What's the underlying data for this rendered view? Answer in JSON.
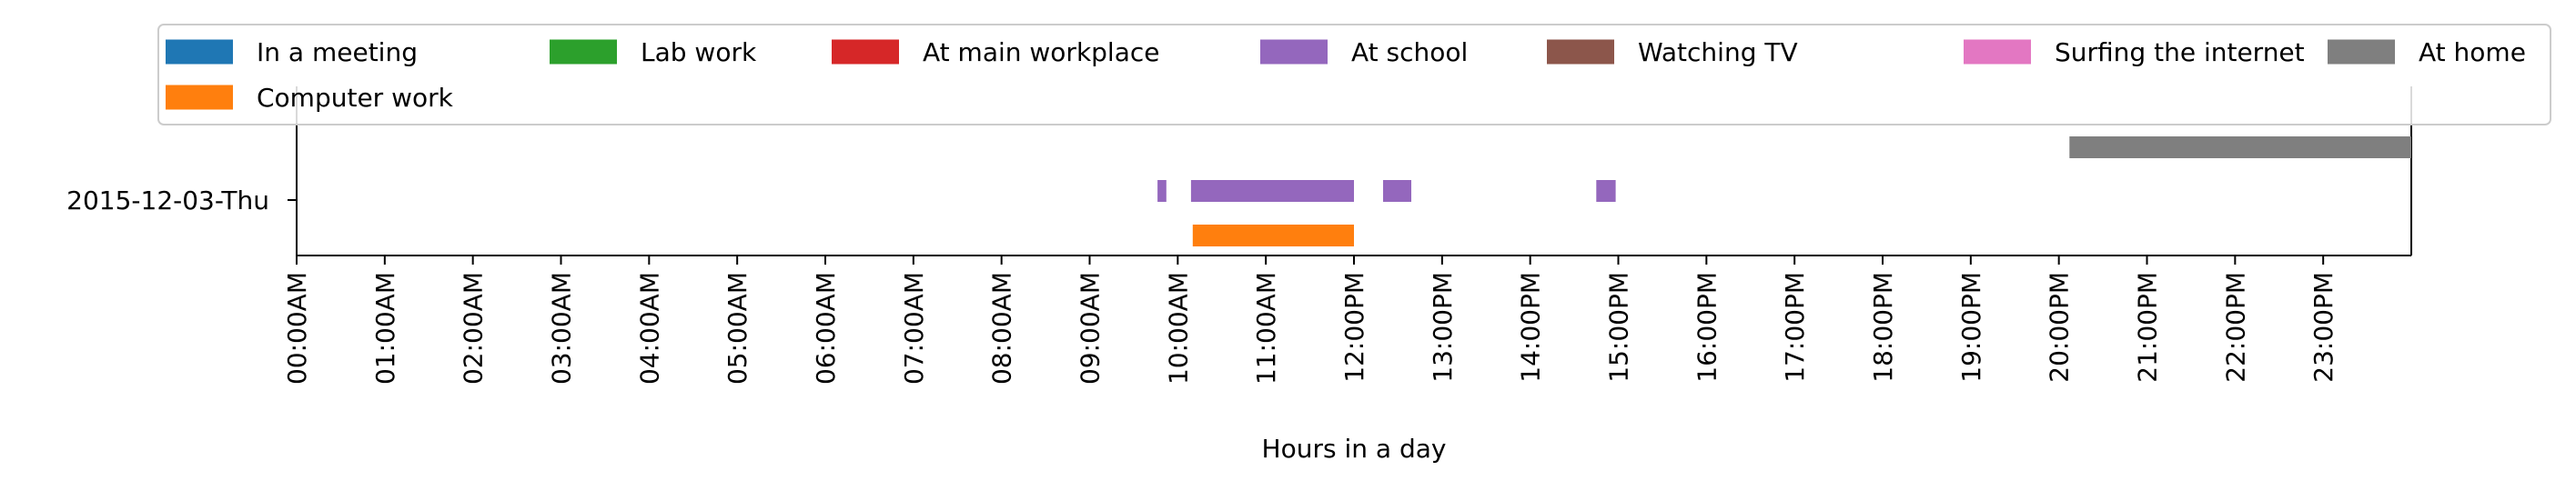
{
  "chart_data": {
    "type": "timeline",
    "xlabel": "Hours in a day",
    "ylabel": "",
    "date_label": "2015-12-03-Thu",
    "xlim": [
      0,
      24
    ],
    "x_tick_labels": [
      "00:00AM",
      "01:00AM",
      "02:00AM",
      "03:00AM",
      "04:00AM",
      "05:00AM",
      "06:00AM",
      "07:00AM",
      "08:00AM",
      "09:00AM",
      "10:00AM",
      "11:00AM",
      "12:00PM",
      "13:00PM",
      "14:00PM",
      "15:00PM",
      "16:00PM",
      "17:00PM",
      "18:00PM",
      "19:00PM",
      "20:00PM",
      "21:00PM",
      "22:00PM",
      "23:00PM"
    ],
    "legend_position": "top",
    "series": [
      {
        "name": "In a meeting",
        "color": "#1f77b4",
        "intervals": []
      },
      {
        "name": "Computer work",
        "color": "#ff7f0e",
        "intervals": [
          [
            10.17,
            12.0
          ]
        ]
      },
      {
        "name": "Lab work",
        "color": "#2ca02c",
        "intervals": []
      },
      {
        "name": "At main workplace",
        "color": "#d62728",
        "intervals": []
      },
      {
        "name": "At school",
        "color": "#9467bd",
        "intervals": [
          [
            9.77,
            9.87
          ],
          [
            10.15,
            12.0
          ],
          [
            12.33,
            12.65
          ],
          [
            14.75,
            14.97
          ]
        ]
      },
      {
        "name": "Watching TV",
        "color": "#8c564b",
        "intervals": []
      },
      {
        "name": "Surfing the internet",
        "color": "#e377c2",
        "intervals": []
      },
      {
        "name": "At home",
        "color": "#7f7f7f",
        "intervals": [
          [
            20.12,
            24.0
          ]
        ]
      }
    ]
  }
}
